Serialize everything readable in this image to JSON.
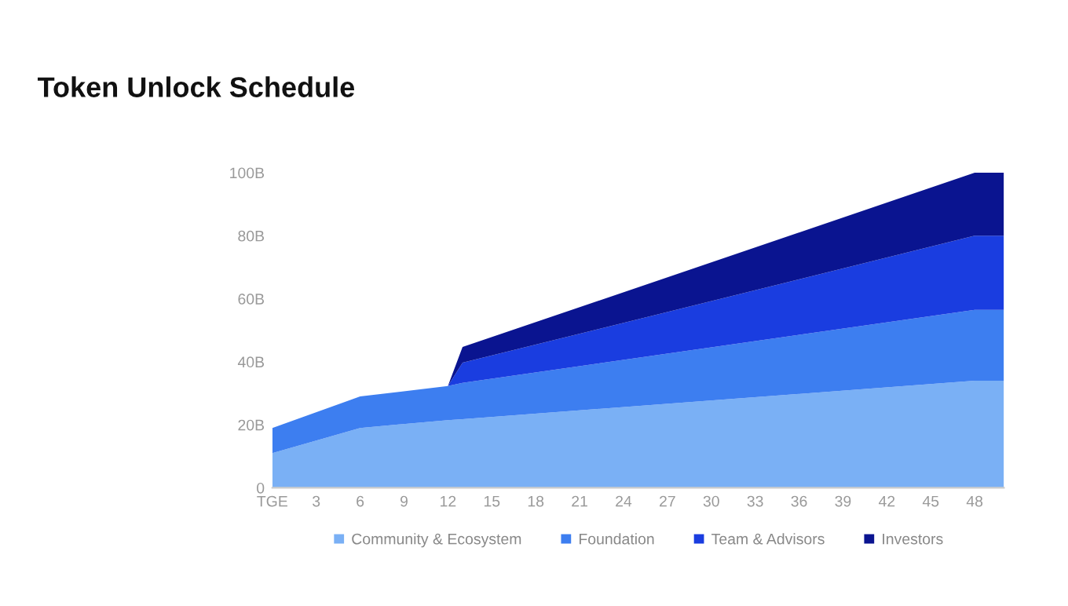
{
  "chart_data": {
    "type": "area",
    "title": "Token Unlock Schedule",
    "stacked": true,
    "x": [
      0,
      6,
      12,
      13,
      48,
      50
    ],
    "series": [
      {
        "name": "Community & Ecosystem",
        "color": "#7ab0f5",
        "values": [
          11,
          19,
          21.5,
          21.8,
          34,
          34
        ]
      },
      {
        "name": "Foundation",
        "color": "#3d7ef0",
        "values": [
          8,
          10,
          10.8,
          11.5,
          22.5,
          22.5
        ]
      },
      {
        "name": "Team & Advisors",
        "color": "#1a3de0",
        "values": [
          0,
          0,
          0,
          6.4,
          23.5,
          23.5
        ]
      },
      {
        "name": "Investors",
        "color": "#0a1490",
        "values": [
          0,
          0,
          0,
          5,
          20,
          20
        ]
      }
    ],
    "xlim": [
      0,
      50
    ],
    "xticks": [
      {
        "value": 0,
        "label": "TGE"
      },
      3,
      6,
      9,
      12,
      15,
      18,
      21,
      24,
      27,
      30,
      33,
      36,
      39,
      42,
      45,
      48
    ],
    "ylim": [
      0,
      100
    ],
    "yticks": [
      0,
      {
        "value": 20,
        "label": "20B"
      },
      {
        "value": 40,
        "label": "40B"
      },
      {
        "value": 60,
        "label": "60B"
      },
      {
        "value": 80,
        "label": "80B"
      },
      {
        "value": 100,
        "label": "100B"
      }
    ],
    "grid": false,
    "legend": "bottom"
  }
}
